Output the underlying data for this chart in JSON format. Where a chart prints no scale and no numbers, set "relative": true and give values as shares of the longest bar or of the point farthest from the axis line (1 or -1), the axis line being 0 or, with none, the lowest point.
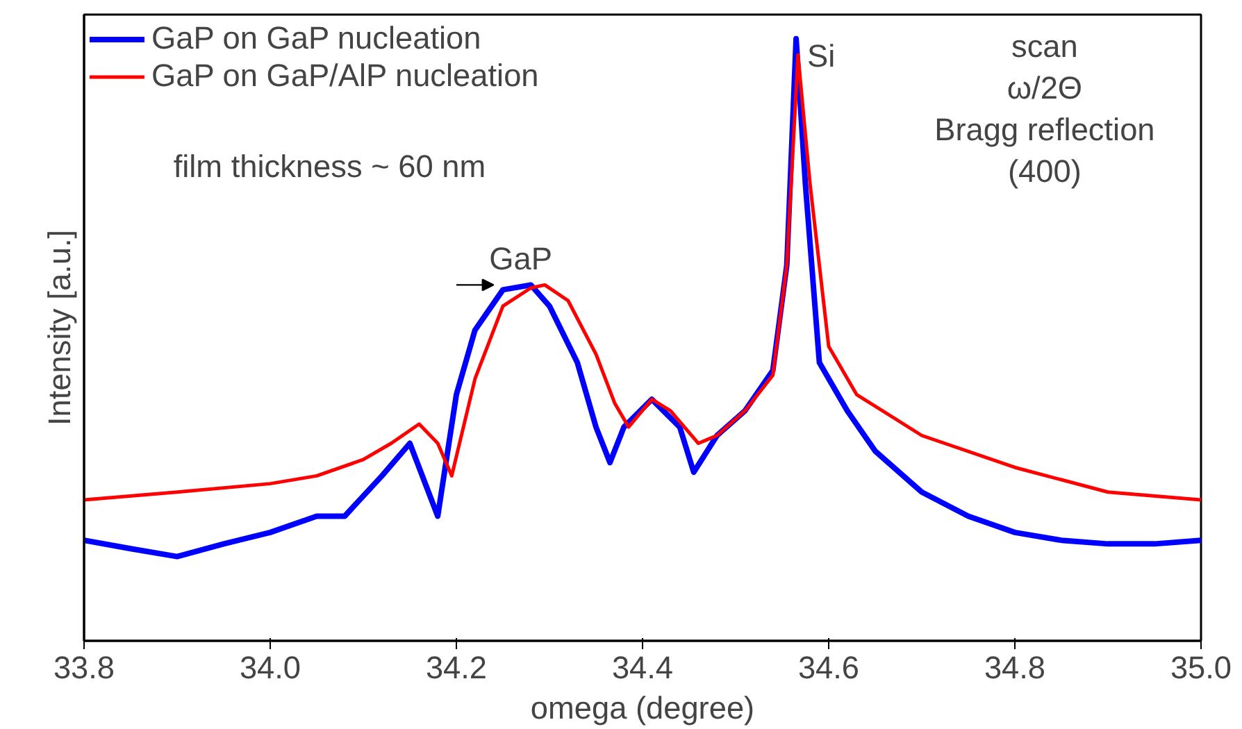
{
  "chart_data": {
    "type": "line",
    "relative": true,
    "xlabel": "omega (degree)",
    "ylabel": "Intensity [a.u.]",
    "xlim": [
      33.8,
      35.0
    ],
    "xticks": [
      {
        "value": 33.8,
        "label": "33.8"
      },
      {
        "value": 34.0,
        "label": "34.0"
      },
      {
        "value": 34.2,
        "label": "34.2"
      },
      {
        "value": 34.4,
        "label": "34.4"
      },
      {
        "value": 34.6,
        "label": "34.6"
      },
      {
        "value": 34.8,
        "label": "34.8"
      },
      {
        "value": 35.0,
        "label": "35.0"
      }
    ],
    "grid": false,
    "legend": "top left",
    "line_style": "solid",
    "series": [
      {
        "name": "GaP on GaP nucleation",
        "color": "#0000ff",
        "x": [
          33.8,
          33.85,
          33.9,
          33.95,
          34.0,
          34.05,
          34.08,
          34.12,
          34.15,
          34.18,
          34.2,
          34.22,
          34.25,
          34.28,
          34.3,
          34.33,
          34.35,
          34.365,
          34.38,
          34.41,
          34.44,
          34.455,
          34.48,
          34.51,
          34.54,
          34.555,
          34.565,
          34.575,
          34.59,
          34.62,
          34.65,
          34.7,
          34.75,
          34.8,
          34.85,
          34.9,
          34.95,
          35.0
        ],
        "values": [
          0.167,
          0.153,
          0.14,
          0.161,
          0.18,
          0.207,
          0.207,
          0.274,
          0.328,
          0.207,
          0.409,
          0.516,
          0.583,
          0.591,
          0.556,
          0.462,
          0.355,
          0.296,
          0.355,
          0.401,
          0.355,
          0.28,
          0.341,
          0.382,
          0.449,
          0.624,
          1.0,
          0.758,
          0.462,
          0.382,
          0.315,
          0.247,
          0.207,
          0.18,
          0.167,
          0.161,
          0.161,
          0.167
        ]
      },
      {
        "name": "GaP on GaP/AlP nucleation",
        "color": "#ff0000",
        "x": [
          33.8,
          33.9,
          34.0,
          34.05,
          34.1,
          34.13,
          34.16,
          34.18,
          34.195,
          34.22,
          34.25,
          34.28,
          34.295,
          34.32,
          34.35,
          34.37,
          34.385,
          34.41,
          34.43,
          34.46,
          34.48,
          34.51,
          34.54,
          34.555,
          34.567,
          34.58,
          34.6,
          34.63,
          34.7,
          34.8,
          34.9,
          35.0
        ],
        "values": [
          0.234,
          0.247,
          0.261,
          0.274,
          0.301,
          0.328,
          0.36,
          0.328,
          0.274,
          0.435,
          0.556,
          0.586,
          0.591,
          0.565,
          0.476,
          0.395,
          0.355,
          0.401,
          0.382,
          0.328,
          0.341,
          0.382,
          0.441,
          0.624,
          0.973,
          0.758,
          0.489,
          0.409,
          0.341,
          0.288,
          0.247,
          0.234
        ]
      }
    ],
    "annotations": [
      {
        "text": "GaP",
        "x": 34.28,
        "y": 0.591
      },
      {
        "text": "Si",
        "x": 34.565,
        "y": 1.0
      },
      "film thickness ~ 60 nm",
      "scan\nω/2Θ\nBragg reflection\n(400)"
    ]
  }
}
